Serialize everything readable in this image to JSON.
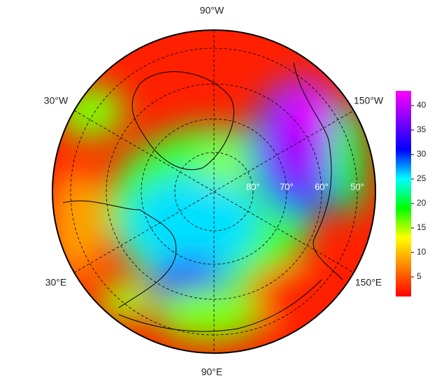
{
  "map": {
    "lon_labels": [
      "90°W",
      "30°W",
      "150°W",
      "30°E",
      "150°E",
      "90°E"
    ],
    "lat_labels": [
      "80°",
      "70°",
      "60°",
      "50°"
    ],
    "colorbar": {
      "lim": [
        1,
        43
      ],
      "ticks": [
        5,
        10,
        15,
        20,
        25,
        30,
        35,
        40
      ],
      "colors": [
        "#ff0000",
        "#ff8000",
        "#ffff00",
        "#00ff00",
        "#00ffff",
        "#0000ff",
        "#8000ff",
        "#ff00ff"
      ]
    }
  }
}
